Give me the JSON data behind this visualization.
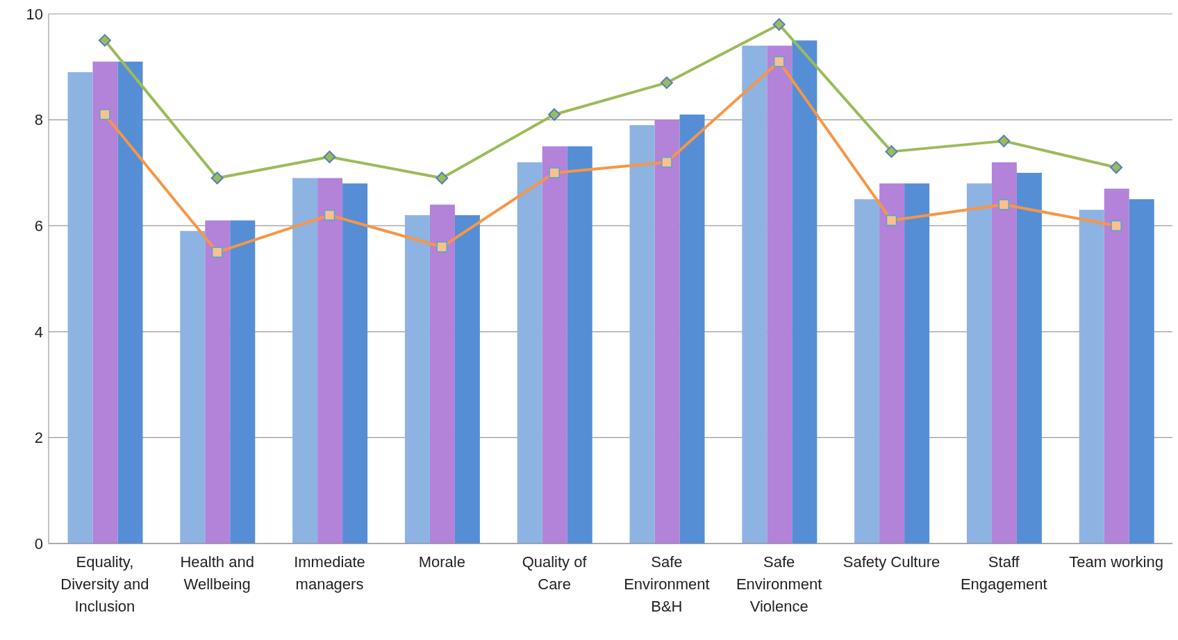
{
  "chart_data": {
    "type": "bar",
    "categories": [
      "Equality, Diversity and Inclusion",
      "Health and Wellbeing",
      "Immediate managers",
      "Morale",
      "Quality of Care",
      "Safe Environment B&H",
      "Safe Environment Violence",
      "Safety Culture",
      "Staff Engagement",
      "Team working"
    ],
    "series": [
      {
        "color": "#8db3e2",
        "values": [
          8.9,
          5.9,
          6.9,
          6.2,
          7.2,
          7.9,
          9.4,
          6.5,
          6.8,
          6.3
        ]
      },
      {
        "color": "#b283d9",
        "values": [
          9.1,
          6.1,
          6.9,
          6.4,
          7.5,
          8.0,
          9.4,
          6.8,
          7.2,
          6.7
        ]
      },
      {
        "color": "#558ed5",
        "values": [
          9.1,
          6.1,
          6.8,
          6.2,
          7.5,
          8.1,
          9.5,
          6.8,
          7.0,
          6.5
        ]
      },
      {
        "type": "line",
        "color": "#9bbb59",
        "marker": "diamond",
        "values": [
          9.5,
          6.9,
          7.3,
          6.9,
          8.1,
          8.7,
          9.8,
          7.4,
          7.6,
          7.1
        ]
      },
      {
        "type": "line",
        "color": "#f79646",
        "marker": "square",
        "values": [
          8.1,
          5.5,
          6.2,
          5.6,
          7.0,
          7.2,
          9.1,
          6.1,
          6.4,
          6.0
        ]
      }
    ],
    "ylim": [
      0,
      10
    ],
    "yticks": [
      0,
      2,
      4,
      6,
      8,
      10
    ],
    "grid": "y",
    "legend": false
  }
}
